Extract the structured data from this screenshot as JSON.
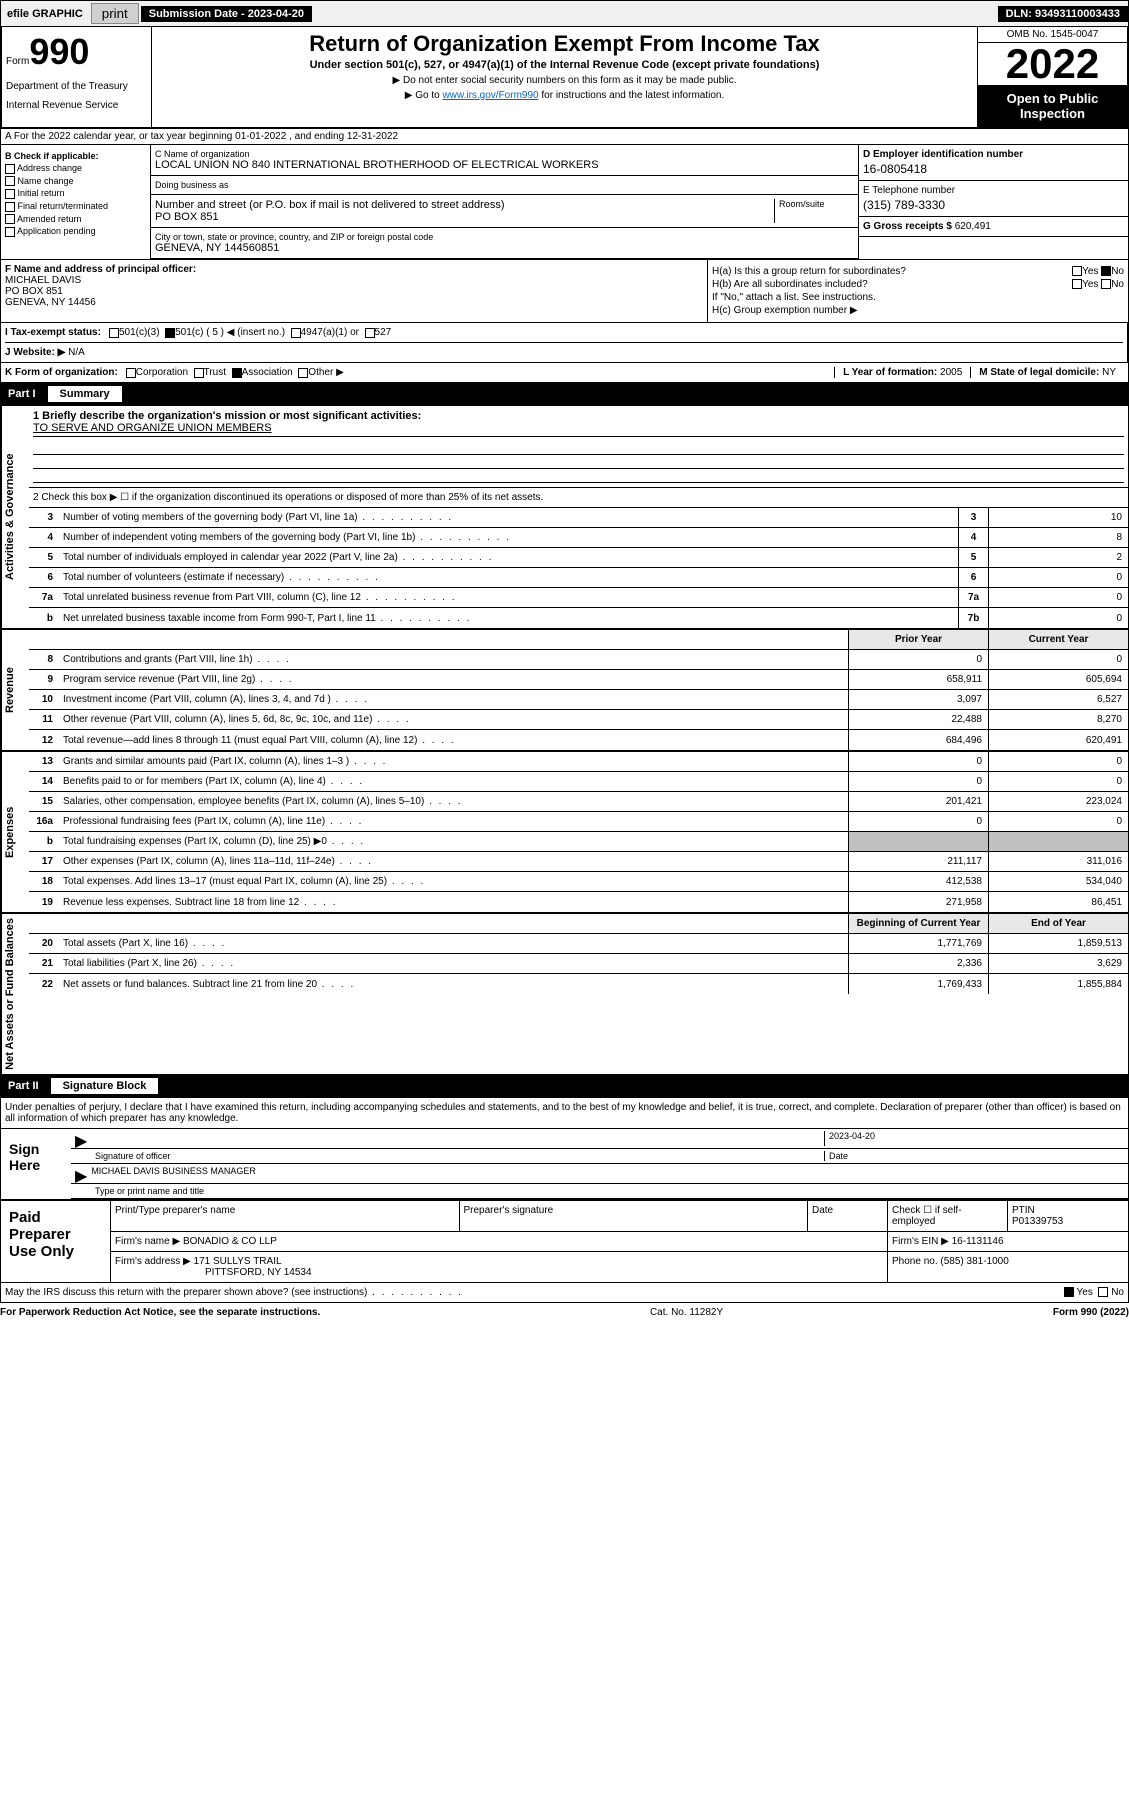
{
  "topbar": {
    "efile": "efile GRAPHIC",
    "print": "print",
    "sub_date_label": "Submission Date - 2023-04-20",
    "dln": "DLN: 93493110003433"
  },
  "header": {
    "form_label": "Form",
    "form_num": "990",
    "dept": "Department of the Treasury",
    "irs": "Internal Revenue Service",
    "title": "Return of Organization Exempt From Income Tax",
    "subtitle": "Under section 501(c), 527, or 4947(a)(1) of the Internal Revenue Code (except private foundations)",
    "note1": "▶ Do not enter social security numbers on this form as it may be made public.",
    "note2_pre": "▶ Go to ",
    "note2_link": "www.irs.gov/Form990",
    "note2_post": " for instructions and the latest information.",
    "omb": "OMB No. 1545-0047",
    "year": "2022",
    "open_public": "Open to Public Inspection"
  },
  "row_a": "A For the 2022 calendar year, or tax year beginning 01-01-2022   , and ending 12-31-2022",
  "col_b": {
    "label": "B Check if applicable:",
    "items": [
      "Address change",
      "Name change",
      "Initial return",
      "Final return/terminated",
      "Amended return",
      "Application pending"
    ]
  },
  "col_c": {
    "name_label": "C Name of organization",
    "name": "LOCAL UNION NO 840 INTERNATIONAL BROTHERHOOD OF ELECTRICAL WORKERS",
    "dba_label": "Doing business as",
    "addr_label": "Number and street (or P.O. box if mail is not delivered to street address)",
    "addr": "PO BOX 851",
    "room_label": "Room/suite",
    "city_label": "City or town, state or province, country, and ZIP or foreign postal code",
    "city": "GENEVA, NY  144560851"
  },
  "col_d": {
    "ein_label": "D Employer identification number",
    "ein": "16-0805418",
    "phone_label": "E Telephone number",
    "phone": "(315) 789-3330",
    "gross_label": "G Gross receipts $",
    "gross": "620,491"
  },
  "row_f": {
    "label": "F Name and address of principal officer:",
    "name": "MICHAEL DAVIS",
    "addr1": "PO BOX 851",
    "addr2": "GENEVA, NY  14456"
  },
  "row_h": {
    "ha": "H(a)  Is this a group return for subordinates?",
    "hb": "H(b)  Are all subordinates included?",
    "hb_note": "If \"No,\" attach a list. See instructions.",
    "hc": "H(c)  Group exemption number ▶"
  },
  "row_i": {
    "label": "I   Tax-exempt status:",
    "opts": [
      "501(c)(3)",
      "501(c) ( 5 ) ◀ (insert no.)",
      "4947(a)(1) or",
      "527"
    ]
  },
  "row_j": {
    "label": "J   Website: ▶",
    "val": "N/A"
  },
  "row_k": {
    "label": "K Form of organization:",
    "opts": [
      "Corporation",
      "Trust",
      "Association",
      "Other ▶"
    ],
    "year_label": "L Year of formation:",
    "year": "2005",
    "state_label": "M State of legal domicile:",
    "state": "NY"
  },
  "part1": {
    "num": "Part I",
    "title": "Summary"
  },
  "mission": {
    "label": "1   Briefly describe the organization's mission or most significant activities:",
    "text": "TO SERVE AND ORGANIZE UNION MEMBERS"
  },
  "line2": "2   Check this box ▶ ☐  if the organization discontinued its operations or disposed of more than 25% of its net assets.",
  "sections": {
    "governance": {
      "label": "Activities & Governance",
      "rows": [
        {
          "ln": "3",
          "desc": "Number of voting members of the governing body (Part VI, line 1a)",
          "box": "3",
          "val": "10"
        },
        {
          "ln": "4",
          "desc": "Number of independent voting members of the governing body (Part VI, line 1b)",
          "box": "4",
          "val": "8"
        },
        {
          "ln": "5",
          "desc": "Total number of individuals employed in calendar year 2022 (Part V, line 2a)",
          "box": "5",
          "val": "2"
        },
        {
          "ln": "6",
          "desc": "Total number of volunteers (estimate if necessary)",
          "box": "6",
          "val": "0"
        },
        {
          "ln": "7a",
          "desc": "Total unrelated business revenue from Part VIII, column (C), line 12",
          "box": "7a",
          "val": "0"
        },
        {
          "ln": "b",
          "desc": "Net unrelated business taxable income from Form 990-T, Part I, line 11",
          "box": "7b",
          "val": "0"
        }
      ]
    },
    "revenue": {
      "label": "Revenue",
      "header": {
        "prior": "Prior Year",
        "current": "Current Year"
      },
      "rows": [
        {
          "ln": "8",
          "desc": "Contributions and grants (Part VIII, line 1h)",
          "prior": "0",
          "current": "0"
        },
        {
          "ln": "9",
          "desc": "Program service revenue (Part VIII, line 2g)",
          "prior": "658,911",
          "current": "605,694"
        },
        {
          "ln": "10",
          "desc": "Investment income (Part VIII, column (A), lines 3, 4, and 7d )",
          "prior": "3,097",
          "current": "6,527"
        },
        {
          "ln": "11",
          "desc": "Other revenue (Part VIII, column (A), lines 5, 6d, 8c, 9c, 10c, and 11e)",
          "prior": "22,488",
          "current": "8,270"
        },
        {
          "ln": "12",
          "desc": "Total revenue—add lines 8 through 11 (must equal Part VIII, column (A), line 12)",
          "prior": "684,496",
          "current": "620,491"
        }
      ]
    },
    "expenses": {
      "label": "Expenses",
      "rows": [
        {
          "ln": "13",
          "desc": "Grants and similar amounts paid (Part IX, column (A), lines 1–3 )",
          "prior": "0",
          "current": "0"
        },
        {
          "ln": "14",
          "desc": "Benefits paid to or for members (Part IX, column (A), line 4)",
          "prior": "0",
          "current": "0"
        },
        {
          "ln": "15",
          "desc": "Salaries, other compensation, employee benefits (Part IX, column (A), lines 5–10)",
          "prior": "201,421",
          "current": "223,024"
        },
        {
          "ln": "16a",
          "desc": "Professional fundraising fees (Part IX, column (A), line 11e)",
          "prior": "0",
          "current": "0"
        },
        {
          "ln": "b",
          "desc": "Total fundraising expenses (Part IX, column (D), line 25) ▶0",
          "prior": "",
          "current": "",
          "shaded": true
        },
        {
          "ln": "17",
          "desc": "Other expenses (Part IX, column (A), lines 11a–11d, 11f–24e)",
          "prior": "211,117",
          "current": "311,016"
        },
        {
          "ln": "18",
          "desc": "Total expenses. Add lines 13–17 (must equal Part IX, column (A), line 25)",
          "prior": "412,538",
          "current": "534,040"
        },
        {
          "ln": "19",
          "desc": "Revenue less expenses. Subtract line 18 from line 12",
          "prior": "271,958",
          "current": "86,451"
        }
      ]
    },
    "netassets": {
      "label": "Net Assets or Fund Balances",
      "header": {
        "prior": "Beginning of Current Year",
        "current": "End of Year"
      },
      "rows": [
        {
          "ln": "20",
          "desc": "Total assets (Part X, line 16)",
          "prior": "1,771,769",
          "current": "1,859,513"
        },
        {
          "ln": "21",
          "desc": "Total liabilities (Part X, line 26)",
          "prior": "2,336",
          "current": "3,629"
        },
        {
          "ln": "22",
          "desc": "Net assets or fund balances. Subtract line 21 from line 20",
          "prior": "1,769,433",
          "current": "1,855,884"
        }
      ]
    }
  },
  "part2": {
    "num": "Part II",
    "title": "Signature Block"
  },
  "sig": {
    "declare": "Under penalties of perjury, I declare that I have examined this return, including accompanying schedules and statements, and to the best of my knowledge and belief, it is true, correct, and complete. Declaration of preparer (other than officer) is based on all information of which preparer has any knowledge.",
    "sign_here": "Sign Here",
    "sig_officer": "Signature of officer",
    "date_label": "Date",
    "date": "2023-04-20",
    "name": "MICHAEL DAVIS  BUSINESS MANAGER",
    "name_label": "Type or print name and title"
  },
  "paid": {
    "label": "Paid Preparer Use Only",
    "hdr": {
      "name": "Print/Type preparer's name",
      "sig": "Preparer's signature",
      "date": "Date",
      "check": "Check ☐ if self-employed",
      "ptin_label": "PTIN",
      "ptin": "P01339753"
    },
    "firm_name_label": "Firm's name    ▶",
    "firm_name": "BONADIO & CO LLP",
    "firm_ein_label": "Firm's EIN ▶",
    "firm_ein": "16-1131146",
    "firm_addr_label": "Firm's address ▶",
    "firm_addr1": "171 SULLYS TRAIL",
    "firm_addr2": "PITTSFORD, NY  14534",
    "phone_label": "Phone no.",
    "phone": "(585) 381-1000"
  },
  "footer": {
    "discuss": "May the IRS discuss this return with the preparer shown above? (see instructions)",
    "yes": "Yes",
    "no": "No",
    "paperwork": "For Paperwork Reduction Act Notice, see the separate instructions.",
    "cat": "Cat. No. 11282Y",
    "form": "Form 990 (2022)"
  }
}
